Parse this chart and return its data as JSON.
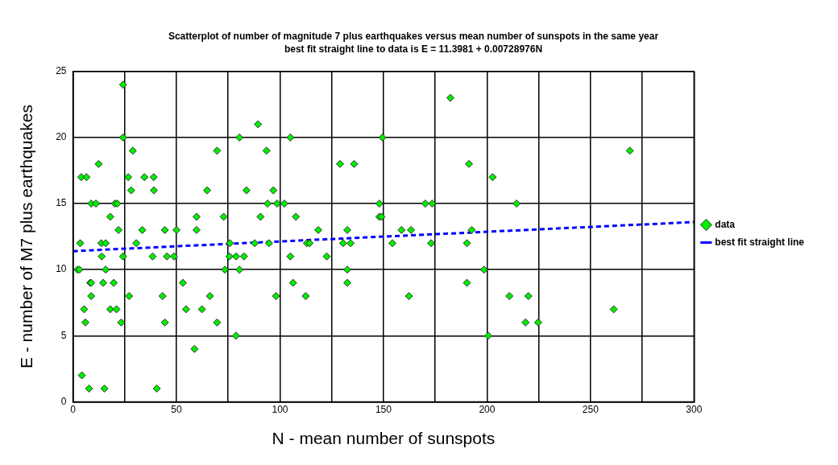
{
  "chart_data": {
    "type": "scatter",
    "title": "Scatterplot of number of magnitude 7 plus earthquakes versus mean number of sunspots in the same year",
    "subtitle": "best fit straight line to data is E = 11.3981 + 0.00728976N",
    "xlabel": "N - mean number of sunspots",
    "ylabel": "E - number of M7 plus earthquakes",
    "xlim": [
      0,
      300
    ],
    "xticks": [
      0,
      {
        "value": 25,
        "label": null
      },
      50,
      {
        "value": 75,
        "label": null
      },
      100,
      {
        "value": 125,
        "label": null
      },
      150,
      {
        "value": 175,
        "label": null
      },
      200,
      {
        "value": 225,
        "label": null
      },
      250,
      {
        "value": 275,
        "label": null
      },
      300
    ],
    "ylim": [
      0,
      25
    ],
    "yticks": [
      0,
      5,
      10,
      15,
      20,
      25
    ],
    "grid": true,
    "legend": "right",
    "marker": "diamond",
    "series": [
      {
        "name": "data",
        "color": "#00ee00",
        "type": "scatter",
        "x": [
          24.2,
          24.2,
          28.9,
          12.4,
          4.0,
          6.5,
          26.7,
          34.5,
          39.0,
          28.1,
          39.1,
          8.8,
          11.1,
          20.3,
          21.4,
          18.0,
          22.0,
          33.5,
          44.4,
          50.0,
          3.5,
          13.7,
          15.8,
          30.6,
          13.9,
          24.2,
          38.5,
          45.4,
          48.8,
          2.2,
          3.1,
          15.8,
          8.3,
          8.8,
          14.6,
          19.7,
          8.8,
          27.1,
          43.3,
          5.4,
          18.0,
          21.0,
          6.0,
          23.3,
          44.4,
          4.3,
          7.8,
          15.2,
          40.5,
          69.6,
          64.8,
          59.7,
          72.8,
          59.7,
          73.4,
          53.1,
          66.1,
          54.6,
          62.3,
          69.6,
          58.7,
          89.4,
          80.4,
          105.0,
          93.5,
          129.0,
          135.8,
          83.8,
          96.8,
          94.0,
          98.6,
          102.1,
          148.0,
          90.6,
          107.7,
          148.0,
          149.0,
          118.5,
          132.5,
          75.8,
          87.8,
          94.7,
          113.0,
          114.3,
          130.5,
          134.1,
          75.6,
          78.8,
          82.6,
          105.0,
          122.6,
          80.4,
          132.5,
          106.3,
          132.5,
          98.1,
          112.4,
          78.8,
          182.3,
          149.5,
          191.3,
          202.7,
          170.2,
          173.5,
          214.3,
          158.7,
          163.3,
          192.6,
          154.3,
          173.0,
          190.3,
          198.6,
          190.3,
          162.3,
          210.8,
          220.0,
          218.6,
          224.7,
          200.6,
          269.0,
          261.2
        ],
        "values": [
          24,
          20,
          19,
          18,
          17,
          17,
          17,
          17,
          17,
          16,
          16,
          15,
          15,
          15,
          15,
          14,
          13,
          13,
          13,
          13,
          12,
          12,
          12,
          12,
          11,
          11,
          11,
          11,
          11,
          10,
          10,
          10,
          9,
          9,
          9,
          9,
          8,
          8,
          8,
          7,
          7,
          7,
          6,
          6,
          6,
          2,
          1,
          1,
          1,
          19,
          16,
          14,
          14,
          13,
          10,
          9,
          8,
          7,
          7,
          6,
          4,
          21,
          20,
          20,
          19,
          18,
          18,
          16,
          16,
          15,
          15,
          15,
          15,
          14,
          14,
          14,
          14,
          13,
          13,
          12,
          12,
          12,
          12,
          12,
          12,
          12,
          11,
          11,
          11,
          11,
          11,
          10,
          10,
          9,
          9,
          8,
          8,
          5,
          23,
          20,
          18,
          17,
          15,
          15,
          15,
          13,
          13,
          13,
          12,
          12,
          12,
          10,
          9,
          8,
          8,
          8,
          6,
          6,
          5,
          19,
          7
        ]
      },
      {
        "name": "best fit straight line",
        "color": "#0000ff",
        "type": "line",
        "line_style": "dashed",
        "marker": "none",
        "x": [
          0,
          300
        ],
        "values": [
          11.4,
          13.6
        ]
      }
    ]
  }
}
